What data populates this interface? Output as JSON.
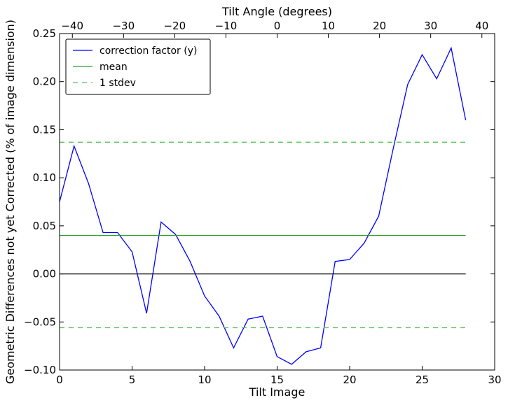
{
  "chart_data": {
    "type": "line",
    "xlabel": "Tilt Image",
    "ylabel": "Geometric Differences not yet Corrected (% of image dimension)",
    "top_xlabel": "Tilt Angle (degrees)",
    "xlim": [
      0,
      30
    ],
    "ylim": [
      -0.1,
      0.25
    ],
    "top_xlim": [
      -42.5,
      42.5
    ],
    "grid": false,
    "legend_position": "top-left",
    "x_ticks": [
      0,
      5,
      10,
      15,
      20,
      25,
      30
    ],
    "x_tick_labels": [
      "0",
      "5",
      "10",
      "15",
      "20",
      "25",
      "30"
    ],
    "y_ticks": [
      -0.1,
      -0.05,
      0.0,
      0.05,
      0.1,
      0.15,
      0.2,
      0.25
    ],
    "y_tick_labels": [
      "−0.10",
      "−0.05",
      "0.00",
      "0.05",
      "0.10",
      "0.15",
      "0.20",
      "0.25"
    ],
    "top_ticks": [
      -40,
      -30,
      -20,
      -10,
      0,
      10,
      20,
      30,
      40
    ],
    "top_tick_labels": [
      "−40",
      "−30",
      "−20",
      "−10",
      "0",
      "10",
      "20",
      "30",
      "40"
    ],
    "series": [
      {
        "name": "correction factor (y)",
        "color": "#0000ff",
        "style": "solid",
        "x": [
          0,
          1,
          2,
          3,
          4,
          5,
          6,
          7,
          8,
          9,
          10,
          11,
          12,
          13,
          14,
          15,
          16,
          17,
          18,
          19,
          20,
          21,
          22,
          23,
          24,
          25,
          26,
          27,
          28
        ],
        "values": [
          0.075,
          0.133,
          0.094,
          0.043,
          0.043,
          0.023,
          -0.041,
          0.054,
          0.041,
          0.013,
          -0.023,
          -0.044,
          -0.077,
          -0.047,
          -0.044,
          -0.086,
          -0.094,
          -0.081,
          -0.077,
          0.013,
          0.015,
          0.032,
          0.06,
          0.13,
          0.197,
          0.228,
          0.203,
          0.235,
          0.16
        ]
      },
      {
        "name": "mean",
        "color": "#2ca02c",
        "style": "solid",
        "x": [
          0,
          28
        ],
        "values": [
          0.04,
          0.04
        ]
      },
      {
        "name": "1 stdev",
        "color": "#5cbf5c",
        "style": "dashed",
        "x": [
          0,
          28
        ],
        "values": [
          0.137,
          0.137
        ]
      },
      {
        "name": "",
        "color": "#5cbf5c",
        "style": "dashed",
        "x": [
          0,
          28
        ],
        "values": [
          -0.056,
          -0.056
        ]
      },
      {
        "name": "",
        "color": "#000000",
        "style": "solid",
        "x": [
          0,
          28
        ],
        "values": [
          0.0,
          0.0
        ]
      }
    ]
  }
}
